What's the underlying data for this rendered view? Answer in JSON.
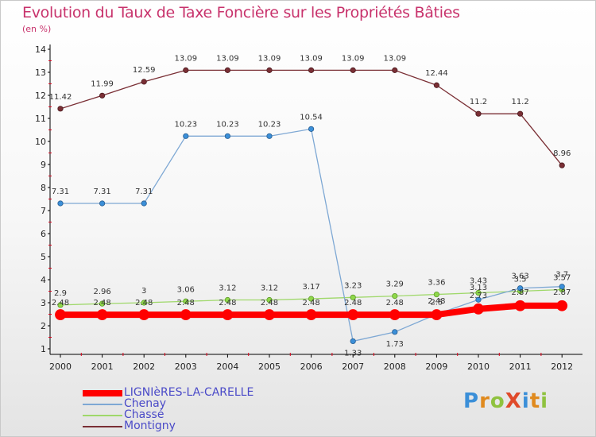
{
  "header": {
    "title": "Evolution du Taux de Taxe Foncière sur les Propriétés Bâties",
    "unit": "(en %)"
  },
  "logo": {
    "text": "ProXiti",
    "colors": [
      "#3b8fd8",
      "#e08a1e",
      "#8fc23f",
      "#e04a2a"
    ]
  },
  "chart_data": {
    "type": "line",
    "title": "Evolution du Taux de Taxe Foncière sur les Propriétés Bâties",
    "ylabel": "(en %)",
    "xlabel": "",
    "ylim": [
      1,
      14
    ],
    "yticks": [
      1,
      2,
      3,
      4,
      5,
      6,
      7,
      8,
      9,
      10,
      11,
      12,
      13,
      14
    ],
    "categories": [
      "2000",
      "2001",
      "2002",
      "2003",
      "2004",
      "2005",
      "2006",
      "2007",
      "2008",
      "2009",
      "2010",
      "2011",
      "2012"
    ],
    "series": [
      {
        "name": "LIGNIèRES-LA-CARELLE",
        "color": "#ff0000",
        "values": [
          2.48,
          2.48,
          2.48,
          2.48,
          2.48,
          2.48,
          2.48,
          2.48,
          2.48,
          2.48,
          2.73,
          2.87,
          2.87
        ],
        "labels": [
          "2.48",
          "2.48",
          "2.48",
          "2.48",
          "2.48",
          "2.48",
          "2.48",
          "2.48",
          "2.48",
          "2.48",
          "2.73",
          "2.87",
          "2.87"
        ]
      },
      {
        "name": "Chenay",
        "color": "#7ea8d4",
        "values": [
          7.31,
          7.31,
          7.31,
          10.23,
          10.23,
          10.23,
          10.54,
          1.33,
          1.73,
          2.5,
          3.13,
          3.63,
          3.7
        ],
        "labels": [
          "7.31",
          "7.31",
          "7.31",
          "10.23",
          "10.23",
          "10.23",
          "10.54",
          "1.33",
          "1.73",
          "2.5",
          "3.13",
          "3.63",
          "3.7"
        ]
      },
      {
        "name": "Chassé",
        "color": "#9fd86a",
        "values": [
          2.9,
          2.96,
          3,
          3.06,
          3.12,
          3.12,
          3.17,
          3.23,
          3.29,
          3.36,
          3.43,
          3.5,
          3.57
        ],
        "labels": [
          "2.9",
          "2.96",
          "3",
          "3.06",
          "3.12",
          "3.12",
          "3.17",
          "3.23",
          "3.29",
          "3.36",
          "3.43",
          "3.5",
          "3.57"
        ]
      },
      {
        "name": "Montigny",
        "color": "#7a2f35",
        "values": [
          11.42,
          11.99,
          12.59,
          13.09,
          13.09,
          13.09,
          13.09,
          13.09,
          13.09,
          12.44,
          11.2,
          11.2,
          8.96
        ],
        "labels": [
          "11.42",
          "11.99",
          "12.59",
          "13.09",
          "13.09",
          "13.09",
          "13.09",
          "13.09",
          "13.09",
          "12.44",
          "11.2",
          "11.2",
          "8.96"
        ]
      }
    ],
    "legend_position": "bottom-left"
  }
}
